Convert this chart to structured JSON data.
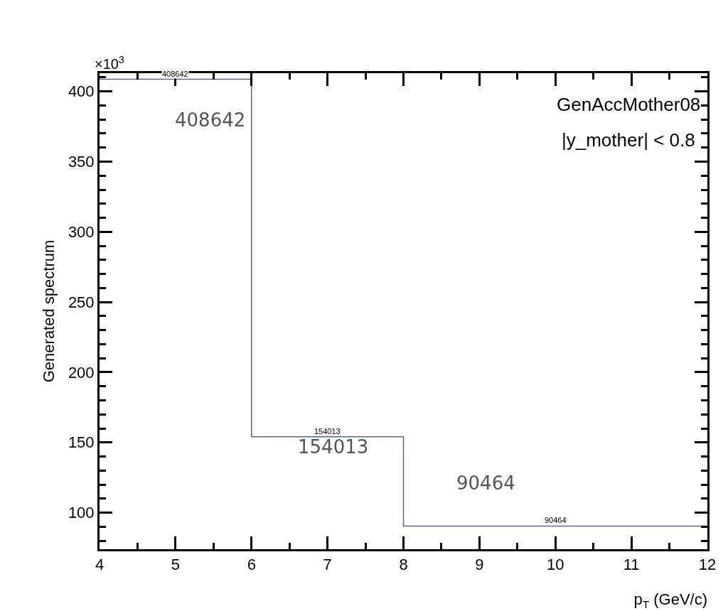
{
  "chart_data": {
    "type": "histogram",
    "xlabel": "p$_{T}$ (GeV/c)",
    "ylabel": "Generated spectrum",
    "bins": [
      4,
      6,
      8,
      12
    ],
    "values": [
      408.642,
      154.013,
      90.464
    ],
    "color": "#5f5fa3",
    "xlim": [
      4,
      12
    ],
    "xticks": [
      4,
      5,
      6,
      7,
      8,
      9,
      10,
      11,
      12
    ],
    "ylim": [
      74,
      413
    ],
    "yticks": [
      100,
      150,
      200,
      250,
      300,
      350,
      400
    ],
    "grid": false,
    "annotations": [
      "GenAccMother08",
      "|y_mother| < 0.8",
      "×10$^{3}$",
      "408642",
      "154013",
      "90464",
      {
        "text": "408642",
        "x": 5,
        "y": 408.642
      },
      {
        "text": "154013",
        "x": 7,
        "y": 154.013
      },
      {
        "text": "90464",
        "x": 10,
        "y": 90.464
      }
    ]
  }
}
